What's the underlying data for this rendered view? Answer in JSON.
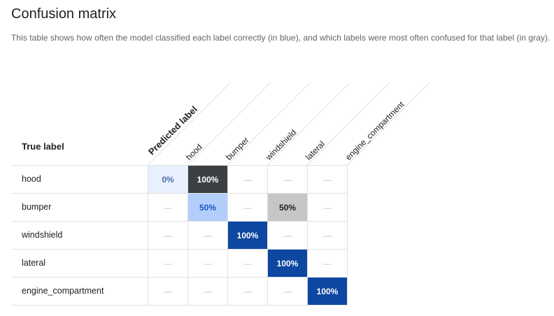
{
  "title": "Confusion matrix",
  "subtitle": "This table shows how often the model classified each label correctly (in blue), and which labels were most often confused for that label (in gray).",
  "predicted_header": "Predicted label",
  "true_header": "True label",
  "labels": [
    "hood",
    "bumper",
    "windshield",
    "lateral",
    "engine_compartment"
  ],
  "dash": "—",
  "matrix": [
    [
      "0%",
      "100%",
      "—",
      "—",
      "—"
    ],
    [
      "—",
      "50%",
      "—",
      "50%",
      "—"
    ],
    [
      "—",
      "—",
      "100%",
      "—",
      "—"
    ],
    [
      "—",
      "—",
      "—",
      "100%",
      "—"
    ],
    [
      "—",
      "—",
      "—",
      "—",
      "100%"
    ]
  ],
  "colors": {
    "correct_strong": "#0d47a1",
    "correct_light": "#b3cefb",
    "correct_faint": "#e8f0fe",
    "confused_dark": "#3c4043",
    "confused_light": "#c6c6c6",
    "grid": "#e0e0e0"
  }
}
